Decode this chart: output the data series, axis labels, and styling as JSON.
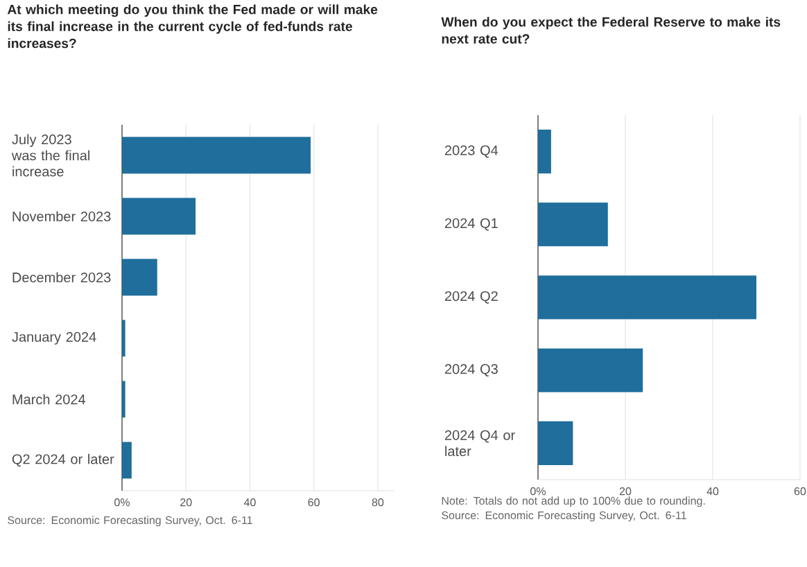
{
  "chart_data": [
    {
      "type": "bar",
      "orientation": "horizontal",
      "title": "At which meeting do you think the Fed made or will make its final increase in the current cycle of fed-funds rate increases?",
      "categories": [
        "July 2023 was the final increase",
        "November 2023",
        "December 2023",
        "January 2024",
        "March 2024",
        "Q2 2024 or later"
      ],
      "values": [
        59,
        23,
        11,
        1,
        1,
        3
      ],
      "color": "#1f6e9c",
      "xlim": [
        0,
        85
      ],
      "xticks": [
        {
          "value": 0,
          "label": "0%"
        },
        20,
        40,
        60,
        80
      ],
      "grid": "x",
      "annotations": [
        "Source: Economic Forecasting Survey, Oct. 6-11"
      ]
    },
    {
      "type": "bar",
      "orientation": "horizontal",
      "title": "When do you expect the Federal Reserve to make its next rate cut?",
      "categories": [
        "2023 Q4",
        "2024 Q1",
        "2024 Q2",
        "2024 Q3",
        "2024 Q4 or later"
      ],
      "values": [
        3,
        16,
        50,
        24,
        8
      ],
      "color": "#1f6e9c",
      "xlim": [
        0,
        60
      ],
      "xticks": [
        {
          "value": 0,
          "label": "0%"
        },
        20,
        40,
        60
      ],
      "grid": "x",
      "annotations": [
        "Note: Totals do not add up to 100% due to rounding.",
        "Source: Economic Forecasting Survey, Oct. 6-11"
      ]
    }
  ]
}
